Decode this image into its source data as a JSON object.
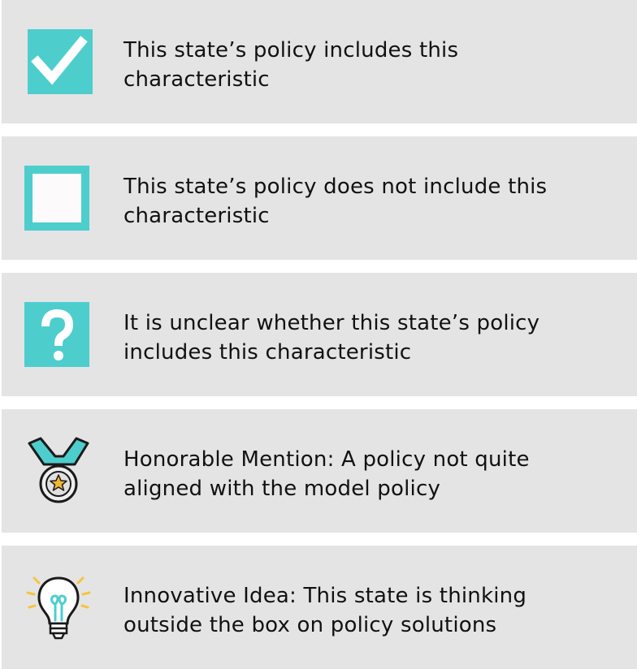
{
  "legend": {
    "items": [
      {
        "icon": "checked-box-icon",
        "line1": "This state’s policy includes this",
        "line2": "characteristic"
      },
      {
        "icon": "empty-box-icon",
        "line1": "This state’s policy does not include this",
        "line2": "characteristic"
      },
      {
        "icon": "question-mark-icon",
        "line1": "It is unclear whether this state’s policy",
        "line2": "includes this characteristic"
      },
      {
        "icon": "medal-icon",
        "line1": "Honorable Mention: A policy not quite",
        "line2": "aligned with the model policy"
      },
      {
        "icon": "lightbulb-icon",
        "line1": "Innovative Idea: This state is thinking",
        "line2": "outside the box on policy solutions"
      }
    ]
  },
  "colors": {
    "teal": "#4ecdcd",
    "row_background": "#e4e4e4",
    "text": "#111111",
    "star": "#f2b632",
    "bulb_rays": "#f4c542"
  }
}
